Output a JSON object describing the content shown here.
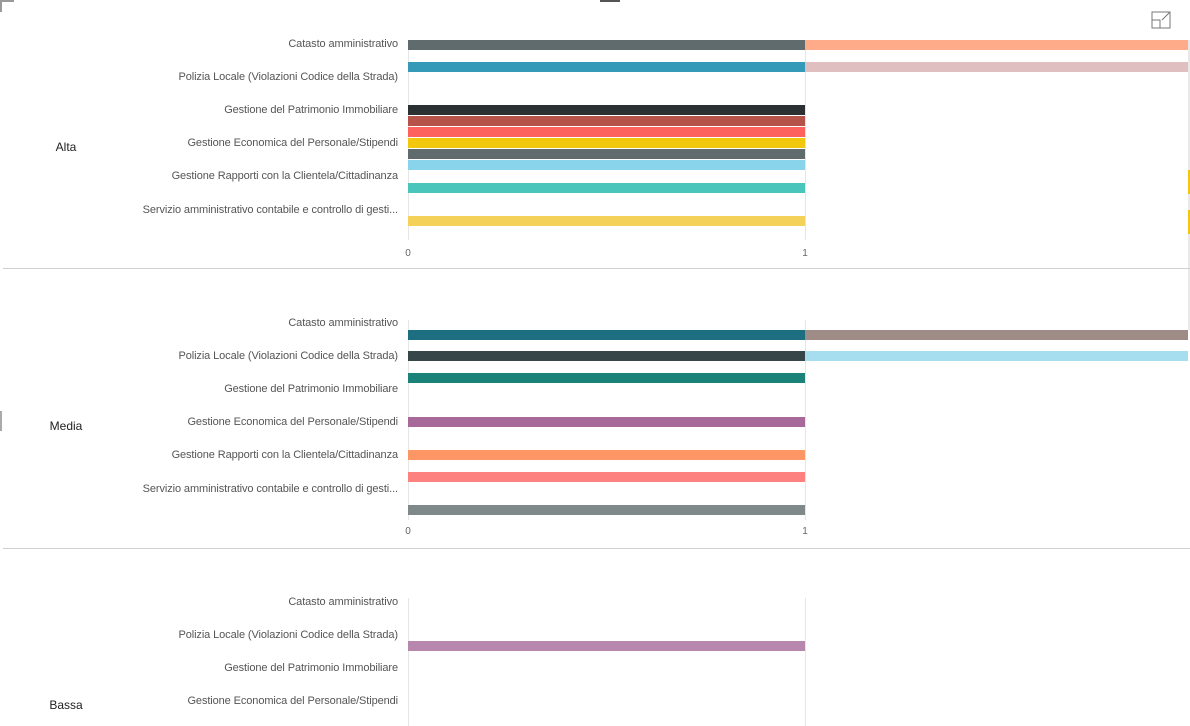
{
  "chart_data": {
    "type": "bar",
    "orientation": "horizontal",
    "stacked": true,
    "x_ticks": [
      "0",
      "1"
    ],
    "categories": [
      "Catasto amministrativo",
      "Polizia Locale (Violazioni Codice della Strada)",
      "Gestione del Patrimonio Immobiliare",
      "Gestione Economica del Personale/Stipendi",
      "Gestione Rapporti con la Clientela/Cittadinanza",
      "Servizio amministrativo contabile e controllo di gesti..."
    ],
    "panels": [
      {
        "group": "Alta",
        "bars": [
          {
            "values": [
              1,
              1
            ],
            "colors": [
              "#5f6b6d",
              "#fdab89"
            ]
          },
          {
            "values": [
              1,
              1
            ],
            "colors": [
              "#3599b8",
              "#dfbfbf"
            ]
          },
          {
            "values": [
              1
            ],
            "colors": [
              "#2b3133"
            ]
          },
          {
            "values": [
              1
            ],
            "colors": [
              "#b5524a"
            ]
          },
          {
            "values": [
              1
            ],
            "colors": [
              "#fd625e"
            ]
          },
          {
            "values": [
              1
            ],
            "colors": [
              "#f2c80f"
            ]
          },
          {
            "values": [
              1
            ],
            "colors": [
              "#5f6b6d"
            ]
          },
          {
            "values": [
              1
            ],
            "colors": [
              "#8ad4eb"
            ]
          },
          {
            "values": [
              1
            ],
            "colors": [
              "#4ac5bb"
            ]
          },
          {
            "values": [
              1
            ],
            "colors": [
              "#f4d25a"
            ]
          }
        ]
      },
      {
        "group": "Media",
        "bars": [
          {
            "values": [
              1,
              1
            ],
            "colors": [
              "#1c6e80",
              "#a08c86"
            ]
          },
          {
            "values": [
              1,
              1
            ],
            "colors": [
              "#374649",
              "#a6def0"
            ]
          },
          {
            "values": [
              1
            ],
            "colors": [
              "#1a8278"
            ]
          },
          {
            "values": [
              1
            ],
            "colors": [
              "#a66999"
            ]
          },
          {
            "values": [
              1
            ],
            "colors": [
              "#fe9666"
            ]
          },
          {
            "values": [
              1
            ],
            "colors": [
              "#fd817e"
            ]
          },
          {
            "values": [
              1
            ],
            "colors": [
              "#7f898a"
            ]
          }
        ]
      },
      {
        "group": "Bassa",
        "bars": [
          {
            "values": [
              1
            ],
            "colors": [
              "#b887ad"
            ]
          }
        ]
      }
    ]
  },
  "icons": {
    "focus_mode": "focus-mode-icon"
  }
}
